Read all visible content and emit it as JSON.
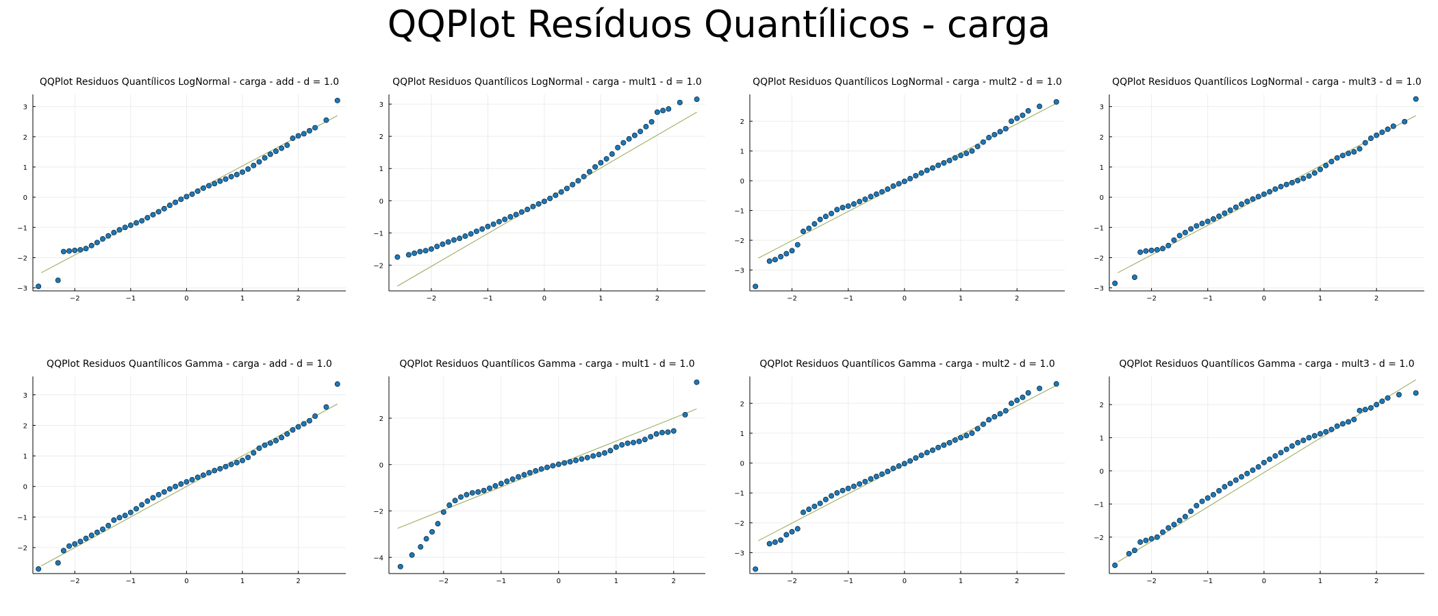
{
  "title": "QQPlot Resíduos Quantílicos - carga",
  "colors": {
    "points": "#1f77b4",
    "point_edge": "#0b2a44",
    "line": "#a3b36b",
    "grid": "#ececec",
    "axis": "#000000"
  },
  "chart_data": [
    {
      "type": "scatter",
      "title": "QQPlot Residuos Quantílicos LogNormal - carga - add - d = 1.0",
      "xlim": [
        -2.75,
        2.85
      ],
      "ylim": [
        -3.1,
        3.4
      ],
      "xticks": [
        -2,
        -1,
        0,
        1,
        2
      ],
      "yticks": [
        -3,
        -2,
        -1,
        0,
        1,
        2,
        3
      ],
      "ref_line": {
        "x": [
          -2.6,
          2.7
        ],
        "y": [
          -2.5,
          2.7
        ]
      },
      "series": [
        {
          "x": [
            -2.65,
            -2.3,
            -2.2,
            -2.1,
            -2.0,
            -1.9,
            -1.8,
            -1.7,
            -1.6,
            -1.5,
            -1.4,
            -1.3,
            -1.2,
            -1.1,
            -1.0,
            -0.9,
            -0.8,
            -0.7,
            -0.6,
            -0.5,
            -0.4,
            -0.3,
            -0.2,
            -0.1,
            0.0,
            0.1,
            0.2,
            0.3,
            0.4,
            0.5,
            0.6,
            0.7,
            0.8,
            0.9,
            1.0,
            1.1,
            1.2,
            1.3,
            1.4,
            1.5,
            1.6,
            1.7,
            1.8,
            1.9,
            2.0,
            2.1,
            2.2,
            2.3,
            2.5,
            2.7
          ],
          "y": [
            -2.95,
            -2.75,
            -1.8,
            -1.78,
            -1.76,
            -1.74,
            -1.7,
            -1.6,
            -1.5,
            -1.38,
            -1.28,
            -1.17,
            -1.08,
            -1.0,
            -0.93,
            -0.85,
            -0.78,
            -0.68,
            -0.58,
            -0.48,
            -0.38,
            -0.27,
            -0.17,
            -0.07,
            0.02,
            0.1,
            0.2,
            0.3,
            0.38,
            0.45,
            0.53,
            0.6,
            0.68,
            0.75,
            0.83,
            0.93,
            1.05,
            1.17,
            1.3,
            1.42,
            1.52,
            1.62,
            1.72,
            1.95,
            2.03,
            2.1,
            2.2,
            2.3,
            2.55,
            3.2
          ]
        }
      ]
    },
    {
      "type": "scatter",
      "title": "QQPlot Residuos Quantílicos LogNormal - carga - mult1 - d = 1.0",
      "xlim": [
        -2.75,
        2.85
      ],
      "ylim": [
        -2.8,
        3.3
      ],
      "xticks": [
        -2,
        -1,
        0,
        1,
        2
      ],
      "yticks": [
        -2,
        -1,
        0,
        1,
        2,
        3
      ],
      "ref_line": {
        "x": [
          -2.6,
          2.7
        ],
        "y": [
          -2.65,
          2.75
        ]
      },
      "series": [
        {
          "x": [
            -2.6,
            -2.4,
            -2.3,
            -2.2,
            -2.1,
            -2.0,
            -1.9,
            -1.8,
            -1.7,
            -1.6,
            -1.5,
            -1.4,
            -1.3,
            -1.2,
            -1.1,
            -1.0,
            -0.9,
            -0.8,
            -0.7,
            -0.6,
            -0.5,
            -0.4,
            -0.3,
            -0.2,
            -0.1,
            0.0,
            0.1,
            0.2,
            0.3,
            0.4,
            0.5,
            0.6,
            0.7,
            0.8,
            0.9,
            1.0,
            1.1,
            1.2,
            1.3,
            1.4,
            1.5,
            1.6,
            1.7,
            1.8,
            1.9,
            2.0,
            2.1,
            2.2,
            2.4,
            2.7
          ],
          "y": [
            -1.75,
            -1.68,
            -1.63,
            -1.58,
            -1.55,
            -1.5,
            -1.42,
            -1.35,
            -1.28,
            -1.22,
            -1.17,
            -1.1,
            -1.03,
            -0.95,
            -0.88,
            -0.8,
            -0.73,
            -0.65,
            -0.58,
            -0.5,
            -0.43,
            -0.35,
            -0.27,
            -0.18,
            -0.1,
            -0.02,
            0.07,
            0.17,
            0.27,
            0.38,
            0.5,
            0.62,
            0.75,
            0.9,
            1.05,
            1.18,
            1.3,
            1.45,
            1.65,
            1.8,
            1.92,
            2.03,
            2.15,
            2.3,
            2.45,
            2.75,
            2.8,
            2.85,
            3.05,
            3.15
          ]
        }
      ]
    },
    {
      "type": "scatter",
      "title": "QQPlot Residuos Quantílicos LogNormal - carga - mult2 - d = 1.0",
      "xlim": [
        -2.75,
        2.85
      ],
      "ylim": [
        -3.7,
        2.9
      ],
      "xticks": [
        -2,
        -1,
        0,
        1,
        2
      ],
      "yticks": [
        -3,
        -2,
        -1,
        0,
        1,
        2
      ],
      "ref_line": {
        "x": [
          -2.6,
          2.7
        ],
        "y": [
          -2.6,
          2.6
        ]
      },
      "series": [
        {
          "x": [
            -2.65,
            -2.4,
            -2.3,
            -2.2,
            -2.1,
            -2.0,
            -1.9,
            -1.8,
            -1.7,
            -1.6,
            -1.5,
            -1.4,
            -1.3,
            -1.2,
            -1.1,
            -1.0,
            -0.9,
            -0.8,
            -0.7,
            -0.6,
            -0.5,
            -0.4,
            -0.3,
            -0.2,
            -0.1,
            0.0,
            0.1,
            0.2,
            0.3,
            0.4,
            0.5,
            0.6,
            0.7,
            0.8,
            0.9,
            1.0,
            1.1,
            1.2,
            1.3,
            1.4,
            1.5,
            1.6,
            1.7,
            1.8,
            1.9,
            2.0,
            2.1,
            2.2,
            2.4,
            2.7
          ],
          "y": [
            -3.55,
            -2.7,
            -2.65,
            -2.55,
            -2.45,
            -2.35,
            -2.15,
            -1.7,
            -1.6,
            -1.45,
            -1.3,
            -1.2,
            -1.1,
            -0.97,
            -0.9,
            -0.85,
            -0.78,
            -0.7,
            -0.62,
            -0.53,
            -0.45,
            -0.37,
            -0.28,
            -0.18,
            -0.1,
            -0.02,
            0.07,
            0.17,
            0.26,
            0.35,
            0.43,
            0.52,
            0.6,
            0.68,
            0.77,
            0.85,
            0.92,
            1.0,
            1.15,
            1.3,
            1.45,
            1.55,
            1.65,
            1.75,
            2.0,
            2.1,
            2.2,
            2.35,
            2.5,
            2.65
          ]
        }
      ]
    },
    {
      "type": "scatter",
      "title": "QQPlot Residuos Quantílicos LogNormal - carga - mult3 - d = 1.0",
      "xlim": [
        -2.75,
        2.85
      ],
      "ylim": [
        -3.1,
        3.4
      ],
      "xticks": [
        -2,
        -1,
        0,
        1,
        2
      ],
      "yticks": [
        -3,
        -2,
        -1,
        0,
        1,
        2,
        3
      ],
      "ref_line": {
        "x": [
          -2.6,
          2.7
        ],
        "y": [
          -2.5,
          2.7
        ]
      },
      "series": [
        {
          "x": [
            -2.65,
            -2.3,
            -2.2,
            -2.1,
            -2.0,
            -1.9,
            -1.8,
            -1.7,
            -1.6,
            -1.5,
            -1.4,
            -1.3,
            -1.2,
            -1.1,
            -1.0,
            -0.9,
            -0.8,
            -0.7,
            -0.6,
            -0.5,
            -0.4,
            -0.3,
            -0.2,
            -0.1,
            0.0,
            0.1,
            0.2,
            0.3,
            0.4,
            0.5,
            0.6,
            0.7,
            0.8,
            0.9,
            1.0,
            1.1,
            1.2,
            1.3,
            1.4,
            1.5,
            1.6,
            1.7,
            1.8,
            1.9,
            2.0,
            2.1,
            2.2,
            2.3,
            2.5,
            2.7
          ],
          "y": [
            -2.85,
            -2.65,
            -1.82,
            -1.78,
            -1.76,
            -1.74,
            -1.7,
            -1.6,
            -1.42,
            -1.27,
            -1.17,
            -1.05,
            -0.95,
            -0.87,
            -0.8,
            -0.72,
            -0.63,
            -0.53,
            -0.43,
            -0.33,
            -0.23,
            -0.14,
            -0.06,
            0.02,
            0.1,
            0.18,
            0.27,
            0.35,
            0.42,
            0.48,
            0.55,
            0.62,
            0.7,
            0.8,
            0.92,
            1.05,
            1.18,
            1.3,
            1.38,
            1.45,
            1.5,
            1.6,
            1.8,
            1.95,
            2.05,
            2.15,
            2.25,
            2.35,
            2.5,
            3.25
          ]
        }
      ]
    },
    {
      "type": "scatter",
      "title": "QQPlot Residuos Quantílicos Gamma - carga - add - d = 1.0",
      "xlim": [
        -2.75,
        2.85
      ],
      "ylim": [
        -2.85,
        3.6
      ],
      "xticks": [
        -2,
        -1,
        0,
        1,
        2
      ],
      "yticks": [
        -2,
        -1,
        0,
        1,
        2,
        3
      ],
      "ref_line": {
        "x": [
          -2.6,
          2.7
        ],
        "y": [
          -2.6,
          2.7
        ]
      },
      "series": [
        {
          "x": [
            -2.65,
            -2.3,
            -2.2,
            -2.1,
            -2.0,
            -1.9,
            -1.8,
            -1.7,
            -1.6,
            -1.5,
            -1.4,
            -1.3,
            -1.2,
            -1.1,
            -1.0,
            -0.9,
            -0.8,
            -0.7,
            -0.6,
            -0.5,
            -0.4,
            -0.3,
            -0.2,
            -0.1,
            0.0,
            0.1,
            0.2,
            0.3,
            0.4,
            0.5,
            0.6,
            0.7,
            0.8,
            0.9,
            1.0,
            1.1,
            1.2,
            1.3,
            1.4,
            1.5,
            1.6,
            1.7,
            1.8,
            1.9,
            2.0,
            2.1,
            2.2,
            2.3,
            2.5,
            2.7
          ],
          "y": [
            -2.7,
            -2.5,
            -2.1,
            -1.95,
            -1.88,
            -1.8,
            -1.7,
            -1.6,
            -1.5,
            -1.4,
            -1.28,
            -1.1,
            -1.02,
            -0.95,
            -0.85,
            -0.73,
            -0.6,
            -0.48,
            -0.37,
            -0.27,
            -0.18,
            -0.08,
            0.0,
            0.08,
            0.15,
            0.22,
            0.3,
            0.37,
            0.45,
            0.52,
            0.58,
            0.65,
            0.72,
            0.78,
            0.85,
            0.95,
            1.1,
            1.25,
            1.35,
            1.42,
            1.5,
            1.6,
            1.72,
            1.85,
            1.95,
            2.05,
            2.15,
            2.3,
            2.6,
            3.35
          ]
        }
      ]
    },
    {
      "type": "scatter",
      "title": "QQPlot Residuos Quantílicos Gamma - carga - mult1 - d = 1.0",
      "xlim": [
        -2.95,
        2.55
      ],
      "ylim": [
        -4.7,
        3.8
      ],
      "xticks": [
        -2,
        -1,
        0,
        1,
        2
      ],
      "yticks": [
        -4,
        -2,
        0,
        2
      ],
      "ref_line": {
        "x": [
          -2.8,
          2.4
        ],
        "y": [
          -2.75,
          2.4
        ]
      },
      "series": [
        {
          "x": [
            -2.75,
            -2.55,
            -2.4,
            -2.3,
            -2.2,
            -2.1,
            -2.0,
            -1.9,
            -1.8,
            -1.7,
            -1.6,
            -1.5,
            -1.4,
            -1.3,
            -1.2,
            -1.1,
            -1.0,
            -0.9,
            -0.8,
            -0.7,
            -0.6,
            -0.5,
            -0.4,
            -0.3,
            -0.2,
            -0.1,
            0.0,
            0.1,
            0.2,
            0.3,
            0.4,
            0.5,
            0.6,
            0.7,
            0.8,
            0.9,
            1.0,
            1.1,
            1.2,
            1.3,
            1.4,
            1.5,
            1.6,
            1.7,
            1.8,
            1.9,
            2.0,
            2.2,
            2.4
          ],
          "y": [
            -4.4,
            -3.9,
            -3.55,
            -3.2,
            -2.9,
            -2.55,
            -2.05,
            -1.75,
            -1.55,
            -1.4,
            -1.3,
            -1.22,
            -1.18,
            -1.12,
            -1.02,
            -0.92,
            -0.82,
            -0.72,
            -0.63,
            -0.53,
            -0.44,
            -0.35,
            -0.27,
            -0.19,
            -0.12,
            -0.05,
            0.01,
            0.07,
            0.12,
            0.18,
            0.24,
            0.3,
            0.37,
            0.43,
            0.5,
            0.6,
            0.75,
            0.85,
            0.92,
            0.95,
            1.0,
            1.08,
            1.2,
            1.32,
            1.38,
            1.4,
            1.45,
            2.15,
            3.55
          ]
        }
      ]
    },
    {
      "type": "scatter",
      "title": "QQPlot Residuos Quantílicos Gamma - carga - mult2 - d = 1.0",
      "xlim": [
        -2.75,
        2.85
      ],
      "ylim": [
        -3.7,
        2.9
      ],
      "xticks": [
        -2,
        -1,
        0,
        1,
        2
      ],
      "yticks": [
        -3,
        -2,
        -1,
        0,
        1,
        2
      ],
      "ref_line": {
        "x": [
          -2.6,
          2.7
        ],
        "y": [
          -2.6,
          2.6
        ]
      },
      "series": [
        {
          "x": [
            -2.65,
            -2.4,
            -2.3,
            -2.2,
            -2.1,
            -2.0,
            -1.9,
            -1.8,
            -1.7,
            -1.6,
            -1.5,
            -1.4,
            -1.3,
            -1.2,
            -1.1,
            -1.0,
            -0.9,
            -0.8,
            -0.7,
            -0.6,
            -0.5,
            -0.4,
            -0.3,
            -0.2,
            -0.1,
            0.0,
            0.1,
            0.2,
            0.3,
            0.4,
            0.5,
            0.6,
            0.7,
            0.8,
            0.9,
            1.0,
            1.1,
            1.2,
            1.3,
            1.4,
            1.5,
            1.6,
            1.7,
            1.8,
            1.9,
            2.0,
            2.1,
            2.2,
            2.4,
            2.7
          ],
          "y": [
            -3.55,
            -2.7,
            -2.65,
            -2.58,
            -2.4,
            -2.3,
            -2.2,
            -1.65,
            -1.55,
            -1.45,
            -1.35,
            -1.22,
            -1.1,
            -1.0,
            -0.92,
            -0.85,
            -0.78,
            -0.7,
            -0.62,
            -0.53,
            -0.45,
            -0.37,
            -0.28,
            -0.18,
            -0.1,
            -0.02,
            0.07,
            0.17,
            0.26,
            0.35,
            0.43,
            0.52,
            0.6,
            0.68,
            0.77,
            0.85,
            0.92,
            1.0,
            1.15,
            1.3,
            1.45,
            1.55,
            1.65,
            1.75,
            2.0,
            2.1,
            2.2,
            2.35,
            2.5,
            2.65
          ]
        }
      ]
    },
    {
      "type": "scatter",
      "title": "QQPlot Residuos Quantílicos Gamma - carga - mult3 - d = 1.0",
      "xlim": [
        -2.75,
        2.85
      ],
      "ylim": [
        -3.1,
        2.85
      ],
      "xticks": [
        -2,
        -1,
        0,
        1,
        2
      ],
      "yticks": [
        -2,
        -1,
        0,
        1,
        2
      ],
      "ref_line": {
        "x": [
          -2.6,
          2.7
        ],
        "y": [
          -2.75,
          2.75
        ]
      },
      "series": [
        {
          "x": [
            -2.65,
            -2.4,
            -2.3,
            -2.2,
            -2.1,
            -2.0,
            -1.9,
            -1.8,
            -1.7,
            -1.6,
            -1.5,
            -1.4,
            -1.3,
            -1.2,
            -1.1,
            -1.0,
            -0.9,
            -0.8,
            -0.7,
            -0.6,
            -0.5,
            -0.4,
            -0.3,
            -0.2,
            -0.1,
            0.0,
            0.1,
            0.2,
            0.3,
            0.4,
            0.5,
            0.6,
            0.7,
            0.8,
            0.9,
            1.0,
            1.1,
            1.2,
            1.3,
            1.4,
            1.5,
            1.6,
            1.7,
            1.8,
            1.9,
            2.0,
            2.1,
            2.2,
            2.4,
            2.7
          ],
          "y": [
            -2.85,
            -2.5,
            -2.4,
            -2.15,
            -2.1,
            -2.05,
            -2.0,
            -1.85,
            -1.72,
            -1.62,
            -1.5,
            -1.38,
            -1.22,
            -1.05,
            -0.92,
            -0.82,
            -0.72,
            -0.6,
            -0.48,
            -0.38,
            -0.28,
            -0.18,
            -0.08,
            0.02,
            0.12,
            0.25,
            0.35,
            0.45,
            0.55,
            0.65,
            0.75,
            0.85,
            0.92,
            1.0,
            1.06,
            1.12,
            1.18,
            1.25,
            1.35,
            1.42,
            1.48,
            1.55,
            1.82,
            1.85,
            1.9,
            2.0,
            2.1,
            2.2,
            2.3,
            2.35
          ]
        }
      ]
    }
  ]
}
